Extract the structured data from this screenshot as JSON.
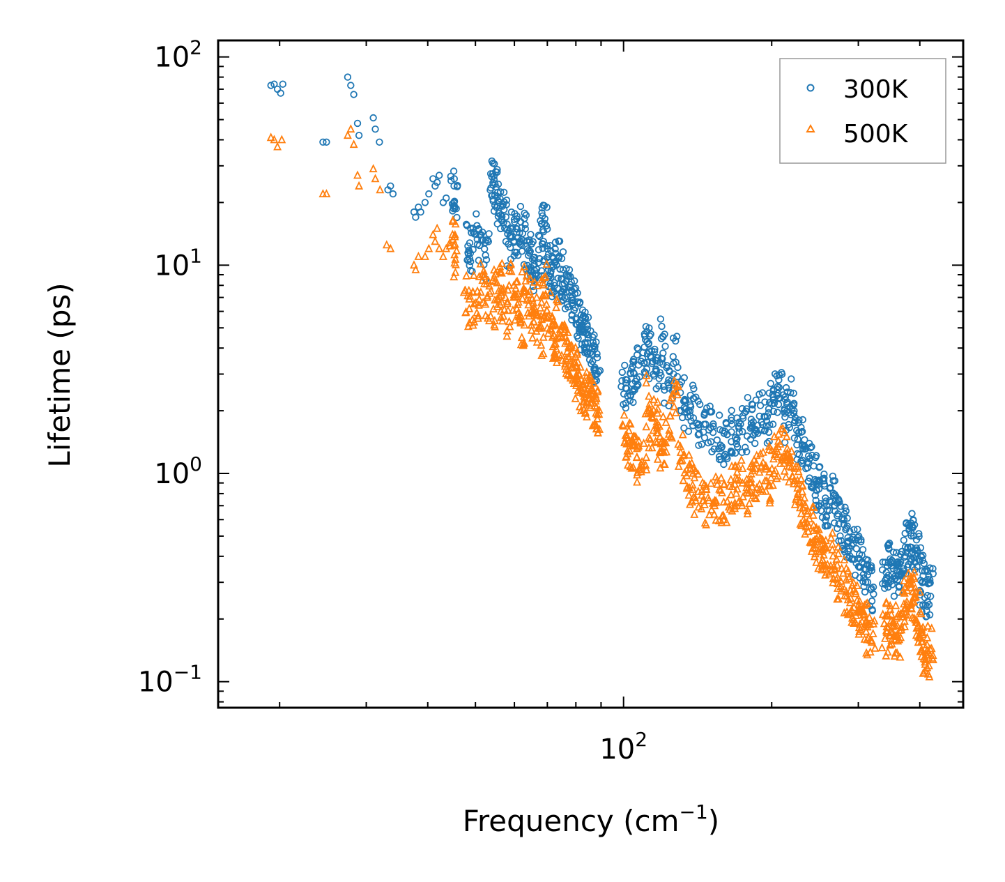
{
  "chart_data": {
    "type": "scatter",
    "title": "",
    "xlabel_main": "Frequency (cm",
    "xlabel_sup": "−1",
    "xlabel_close": ")",
    "ylabel": "Lifetime (ps)",
    "x_scale": "log",
    "y_scale": "log",
    "xlim": [
      15,
      490
    ],
    "ylim": [
      0.075,
      120
    ],
    "x_tick_labels": [
      {
        "value": 100,
        "base": "10",
        "exp": "2"
      }
    ],
    "y_tick_labels": [
      {
        "value": 100,
        "base": "10",
        "exp": "2"
      },
      {
        "value": 10,
        "base": "10",
        "exp": "1"
      },
      {
        "value": 1,
        "base": "10",
        "exp": "0"
      },
      {
        "value": 0.1,
        "base": "10",
        "exp": "−1"
      }
    ],
    "legend_position": "top-right",
    "series": [
      {
        "name": "300K",
        "color": "#1f77b4",
        "marker": "circle",
        "points": [
          [
            19.2,
            73
          ],
          [
            19.5,
            74
          ],
          [
            19.8,
            70
          ],
          [
            20.1,
            67
          ],
          [
            20.3,
            74
          ],
          [
            24.5,
            39
          ],
          [
            24.9,
            39
          ],
          [
            27.5,
            80
          ],
          [
            27.9,
            73
          ],
          [
            28.3,
            66
          ],
          [
            28.8,
            48
          ],
          [
            29.0,
            42
          ],
          [
            31.0,
            51
          ],
          [
            31.3,
            45
          ],
          [
            31.9,
            39
          ],
          [
            33.2,
            23
          ],
          [
            33.6,
            24
          ],
          [
            34.0,
            22
          ],
          [
            37.5,
            18
          ],
          [
            37.8,
            17
          ],
          [
            38.3,
            19
          ],
          [
            38.7,
            18
          ],
          [
            39.5,
            20
          ],
          [
            40.2,
            22
          ],
          [
            41.0,
            26
          ],
          [
            41.4,
            24
          ],
          [
            41.8,
            25
          ],
          [
            42.2,
            27
          ],
          [
            43.0,
            20
          ],
          [
            43.6,
            21
          ],
          [
            45.0,
            22
          ],
          [
            45.4,
            20
          ],
          [
            48.0,
            13
          ],
          [
            49.0,
            12
          ],
          [
            50.2,
            14
          ],
          [
            51.4,
            12
          ],
          [
            52.8,
            11
          ],
          [
            54.0,
            25
          ],
          [
            54.6,
            26
          ],
          [
            55.2,
            22
          ],
          [
            55.8,
            19
          ],
          [
            56.4,
            18
          ],
          [
            57.5,
            16
          ],
          [
            58.5,
            12
          ],
          [
            59.5,
            15
          ],
          [
            60.5,
            14
          ],
          [
            61.5,
            13
          ],
          [
            62.5,
            15
          ],
          [
            63.5,
            12
          ],
          [
            64.5,
            11
          ],
          [
            65.5,
            10.5
          ],
          [
            66.5,
            9.5
          ],
          [
            67.5,
            11
          ],
          [
            68.5,
            16
          ],
          [
            69.0,
            15
          ],
          [
            69.5,
            11
          ],
          [
            70.5,
            10
          ],
          [
            71.5,
            9.5
          ],
          [
            72.5,
            8.5
          ],
          [
            73.5,
            11
          ],
          [
            74.5,
            9
          ],
          [
            75.5,
            8
          ],
          [
            76.5,
            7.5
          ],
          [
            77.5,
            7
          ],
          [
            78.5,
            6.8
          ],
          [
            79.5,
            6.5
          ],
          [
            80.5,
            5.8
          ],
          [
            81.5,
            5.5
          ],
          [
            82.5,
            5
          ],
          [
            83.5,
            4.8
          ],
          [
            84.5,
            4.5
          ],
          [
            85.5,
            4.2
          ],
          [
            86.5,
            3.8
          ],
          [
            87.5,
            3.6
          ],
          [
            88.5,
            3.5
          ],
          [
            100,
            2.7
          ],
          [
            102,
            2.6
          ],
          [
            104,
            2.8
          ],
          [
            106,
            3.0
          ],
          [
            108,
            3.3
          ],
          [
            110,
            3.8
          ],
          [
            112,
            4.0
          ],
          [
            114,
            3.6
          ],
          [
            116,
            3.2
          ],
          [
            118,
            3.0
          ],
          [
            120,
            4.4
          ],
          [
            122,
            2.8
          ],
          [
            125,
            2.6
          ],
          [
            128,
            3.6
          ],
          [
            131,
            2.3
          ],
          [
            134,
            2.0
          ],
          [
            137,
            2.2
          ],
          [
            140,
            1.9
          ],
          [
            144,
            1.7
          ],
          [
            148,
            1.8
          ],
          [
            152,
            1.6
          ],
          [
            156,
            1.5
          ],
          [
            160,
            1.4
          ],
          [
            164,
            1.5
          ],
          [
            168,
            1.6
          ],
          [
            172,
            1.7
          ],
          [
            176,
            1.6
          ],
          [
            180,
            1.8
          ],
          [
            184,
            1.7
          ],
          [
            188,
            1.9
          ],
          [
            192,
            2.0
          ],
          [
            196,
            1.8
          ],
          [
            200,
            2.2
          ],
          [
            204,
            2.5
          ],
          [
            208,
            2.6
          ],
          [
            212,
            2.1
          ],
          [
            216,
            1.8
          ],
          [
            220,
            2.3
          ],
          [
            224,
            1.7
          ],
          [
            228,
            1.5
          ],
          [
            232,
            1.4
          ],
          [
            236,
            1.2
          ],
          [
            240,
            1.1
          ],
          [
            244,
            0.95
          ],
          [
            248,
            0.85
          ],
          [
            252,
            0.8
          ],
          [
            256,
            0.75
          ],
          [
            260,
            0.72
          ],
          [
            265,
            0.78
          ],
          [
            270,
            0.7
          ],
          [
            275,
            0.6
          ],
          [
            280,
            0.55
          ],
          [
            285,
            0.5
          ],
          [
            290,
            0.47
          ],
          [
            295,
            0.43
          ],
          [
            300,
            0.4
          ],
          [
            305,
            0.36
          ],
          [
            310,
            0.33
          ],
          [
            315,
            0.3
          ],
          [
            320,
            0.28
          ],
          [
            340,
            0.32
          ],
          [
            345,
            0.35
          ],
          [
            350,
            0.38
          ],
          [
            355,
            0.33
          ],
          [
            360,
            0.31
          ],
          [
            365,
            0.35
          ],
          [
            370,
            0.4
          ],
          [
            375,
            0.45
          ],
          [
            380,
            0.48
          ],
          [
            385,
            0.5
          ],
          [
            390,
            0.44
          ],
          [
            395,
            0.4
          ],
          [
            400,
            0.35
          ],
          [
            405,
            0.3
          ],
          [
            410,
            0.27
          ],
          [
            415,
            0.25
          ],
          [
            420,
            0.28
          ]
        ]
      },
      {
        "name": "500K",
        "color": "#ff7f0e",
        "marker": "triangle",
        "points": [
          [
            19.2,
            41
          ],
          [
            19.5,
            40
          ],
          [
            19.8,
            37
          ],
          [
            20.2,
            40
          ],
          [
            24.5,
            22
          ],
          [
            24.9,
            22
          ],
          [
            27.5,
            42
          ],
          [
            27.9,
            45
          ],
          [
            28.3,
            38
          ],
          [
            28.8,
            27
          ],
          [
            29.0,
            24
          ],
          [
            31.0,
            29
          ],
          [
            31.3,
            26
          ],
          [
            32.0,
            23
          ],
          [
            33.0,
            12.5
          ],
          [
            33.6,
            12
          ],
          [
            37.5,
            10
          ],
          [
            37.8,
            9.5
          ],
          [
            38.3,
            11
          ],
          [
            39.5,
            11
          ],
          [
            40.2,
            12
          ],
          [
            41.0,
            14
          ],
          [
            41.4,
            13
          ],
          [
            41.8,
            15
          ],
          [
            42.2,
            12
          ],
          [
            43.0,
            11
          ],
          [
            43.6,
            12
          ],
          [
            45.0,
            11
          ],
          [
            45.4,
            13
          ],
          [
            48.0,
            7.5
          ],
          [
            49.0,
            6.5
          ],
          [
            50.2,
            7
          ],
          [
            51.4,
            8
          ],
          [
            52.8,
            7
          ],
          [
            54.0,
            6.5
          ],
          [
            55.0,
            7.5
          ],
          [
            56.0,
            8
          ],
          [
            57.0,
            6
          ],
          [
            58.0,
            5.5
          ],
          [
            59.0,
            8
          ],
          [
            60.0,
            7
          ],
          [
            61.0,
            6
          ],
          [
            62.0,
            5
          ],
          [
            63.0,
            8.5
          ],
          [
            64.0,
            7
          ],
          [
            65.0,
            5.5
          ],
          [
            66.0,
            6.5
          ],
          [
            67.0,
            5
          ],
          [
            68.0,
            4.5
          ],
          [
            69.0,
            8
          ],
          [
            70.0,
            6
          ],
          [
            71.0,
            5
          ],
          [
            72.0,
            4.5
          ],
          [
            73.0,
            4
          ],
          [
            74.0,
            5.5
          ],
          [
            75.0,
            4.2
          ],
          [
            76.0,
            3.8
          ],
          [
            77.0,
            3.5
          ],
          [
            78.0,
            3.2
          ],
          [
            79.0,
            3.4
          ],
          [
            80.0,
            3
          ],
          [
            81.0,
            2.8
          ],
          [
            82.0,
            2.6
          ],
          [
            83.0,
            2.5
          ],
          [
            84.0,
            2.4
          ],
          [
            85.0,
            2.3
          ],
          [
            86.0,
            2.2
          ],
          [
            87.0,
            2.1
          ],
          [
            88.0,
            2.05
          ],
          [
            88.5,
            2.0
          ],
          [
            100,
            1.5
          ],
          [
            102,
            1.4
          ],
          [
            104,
            1.3
          ],
          [
            106,
            1.2
          ],
          [
            108,
            1.1
          ],
          [
            110,
            1.3
          ],
          [
            112,
            2.3
          ],
          [
            114,
            1.6
          ],
          [
            116,
            1.8
          ],
          [
            118,
            1.4
          ],
          [
            120,
            1.2
          ],
          [
            122,
            1.5
          ],
          [
            125,
            1.9
          ],
          [
            128,
            2.2
          ],
          [
            131,
            1.3
          ],
          [
            134,
            1.0
          ],
          [
            137,
            0.9
          ],
          [
            140,
            0.8
          ],
          [
            144,
            0.75
          ],
          [
            148,
            0.7
          ],
          [
            152,
            0.8
          ],
          [
            156,
            0.75
          ],
          [
            160,
            0.7
          ],
          [
            164,
            0.8
          ],
          [
            168,
            0.85
          ],
          [
            172,
            0.9
          ],
          [
            176,
            0.8
          ],
          [
            180,
            0.85
          ],
          [
            184,
            0.9
          ],
          [
            188,
            0.95
          ],
          [
            192,
            1.0
          ],
          [
            196,
            0.9
          ],
          [
            200,
            1.1
          ],
          [
            204,
            1.2
          ],
          [
            208,
            1.4
          ],
          [
            212,
            1.3
          ],
          [
            216,
            1.1
          ],
          [
            220,
            1.0
          ],
          [
            224,
            0.85
          ],
          [
            228,
            0.75
          ],
          [
            232,
            0.7
          ],
          [
            236,
            0.6
          ],
          [
            240,
            0.55
          ],
          [
            244,
            0.5
          ],
          [
            248,
            0.45
          ],
          [
            252,
            0.42
          ],
          [
            256,
            0.4
          ],
          [
            260,
            0.38
          ],
          [
            265,
            0.42
          ],
          [
            270,
            0.36
          ],
          [
            275,
            0.32
          ],
          [
            280,
            0.3
          ],
          [
            285,
            0.27
          ],
          [
            290,
            0.25
          ],
          [
            295,
            0.23
          ],
          [
            300,
            0.21
          ],
          [
            305,
            0.2
          ],
          [
            310,
            0.19
          ],
          [
            315,
            0.17
          ],
          [
            320,
            0.16
          ],
          [
            340,
            0.17
          ],
          [
            345,
            0.19
          ],
          [
            350,
            0.21
          ],
          [
            355,
            0.18
          ],
          [
            360,
            0.16
          ],
          [
            365,
            0.19
          ],
          [
            370,
            0.22
          ],
          [
            375,
            0.25
          ],
          [
            380,
            0.28
          ],
          [
            385,
            0.3
          ],
          [
            390,
            0.25
          ],
          [
            395,
            0.21
          ],
          [
            400,
            0.18
          ],
          [
            405,
            0.16
          ],
          [
            410,
            0.14
          ],
          [
            415,
            0.12
          ],
          [
            420,
            0.15
          ]
        ]
      }
    ]
  }
}
